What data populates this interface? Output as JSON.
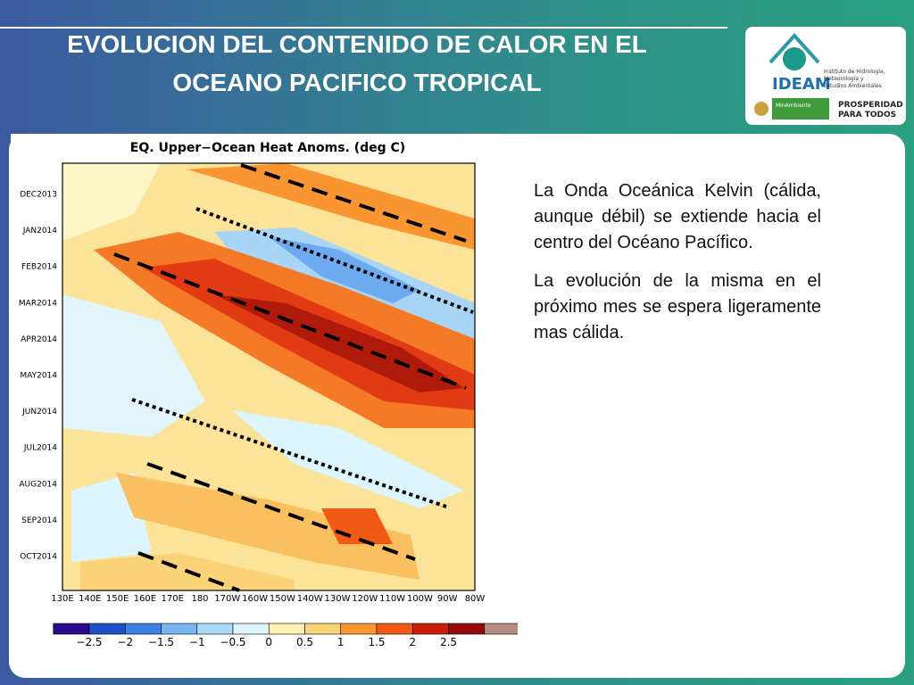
{
  "header": {
    "title_lines": [
      "EVOLUCION DEL CONTENIDO DE CALOR EN EL",
      "OCEANO PACIFICO TROPICAL"
    ]
  },
  "logo": {
    "name": "IDEAM",
    "subtitle_lines": [
      "Instituto de Hidrología,",
      "Meteorología y",
      "Estudios Ambientales"
    ],
    "ministry": "MinAmbiente",
    "slogan_lines": [
      "PROSPERIDAD",
      "PARA TODOS"
    ]
  },
  "figure": {
    "title": "EQ. Upper−Ocean Heat Anoms. (deg C)",
    "y_labels": [
      "DEC2013",
      "JAN2014",
      "FEB2014",
      "MAR2014",
      "APR2014",
      "MAY2014",
      "JUN2014",
      "JUL2014",
      "AUG2014",
      "SEP2014",
      "OCT2014"
    ],
    "x_labels": [
      "130E",
      "140E",
      "150E",
      "160E",
      "170E",
      "180",
      "170W",
      "160W",
      "150W",
      "140W",
      "130W",
      "120W",
      "110W",
      "100W",
      "90W",
      "80W"
    ],
    "colorbar_labels": [
      "−2.5",
      "−2",
      "−1.5",
      "−1",
      "−0.5",
      "0",
      "0.5",
      "1",
      "1.5",
      "2",
      "2.5"
    ]
  },
  "text": {
    "paragraphs": [
      "La Onda Oceánica Kelvin (cálida, aunque débil) se extiende hacia el centro del Océano Pacífico.",
      "La evolución de la misma en el próximo mes se espera ligeramente mas cálida."
    ]
  }
}
